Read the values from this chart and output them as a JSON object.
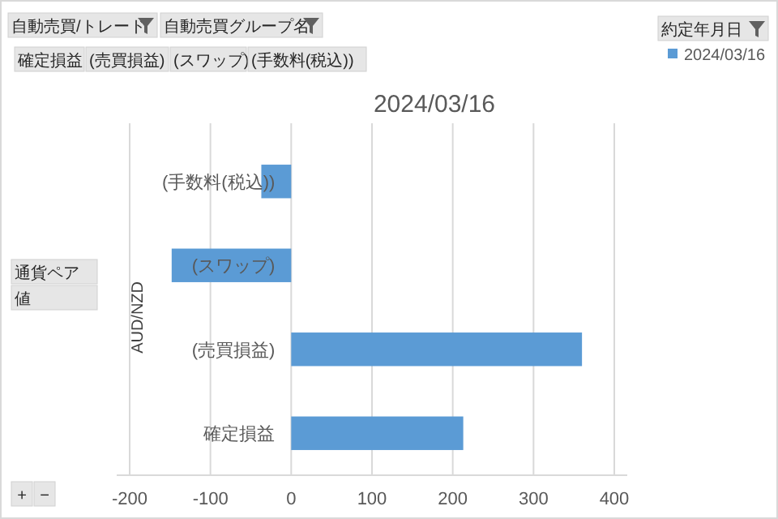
{
  "chart_data": {
    "type": "bar",
    "orientation": "horizontal",
    "title": "2024/03/16",
    "ylabel": "AUD/NZD",
    "categories": [
      "(手数料(税込))",
      "(スワップ)",
      "(売買損益)",
      "確定損益"
    ],
    "series": [
      {
        "name": "2024/03/16",
        "color": "#5b9bd5",
        "values": [
          -37,
          -148,
          360,
          213
        ]
      }
    ],
    "xlim": [
      -200,
      400
    ],
    "xticks": [
      -200,
      -100,
      0,
      100,
      200,
      300,
      400
    ],
    "grid": "x",
    "legend": "top right",
    "annotations": [
      "自動売買/トレード",
      "自動売買グループ名",
      "約定年月日",
      "確定損益",
      "(売買損益)",
      "(スワップ)",
      "(手数料(税込))",
      "通貨ペア",
      "値",
      "+",
      "−"
    ]
  }
}
